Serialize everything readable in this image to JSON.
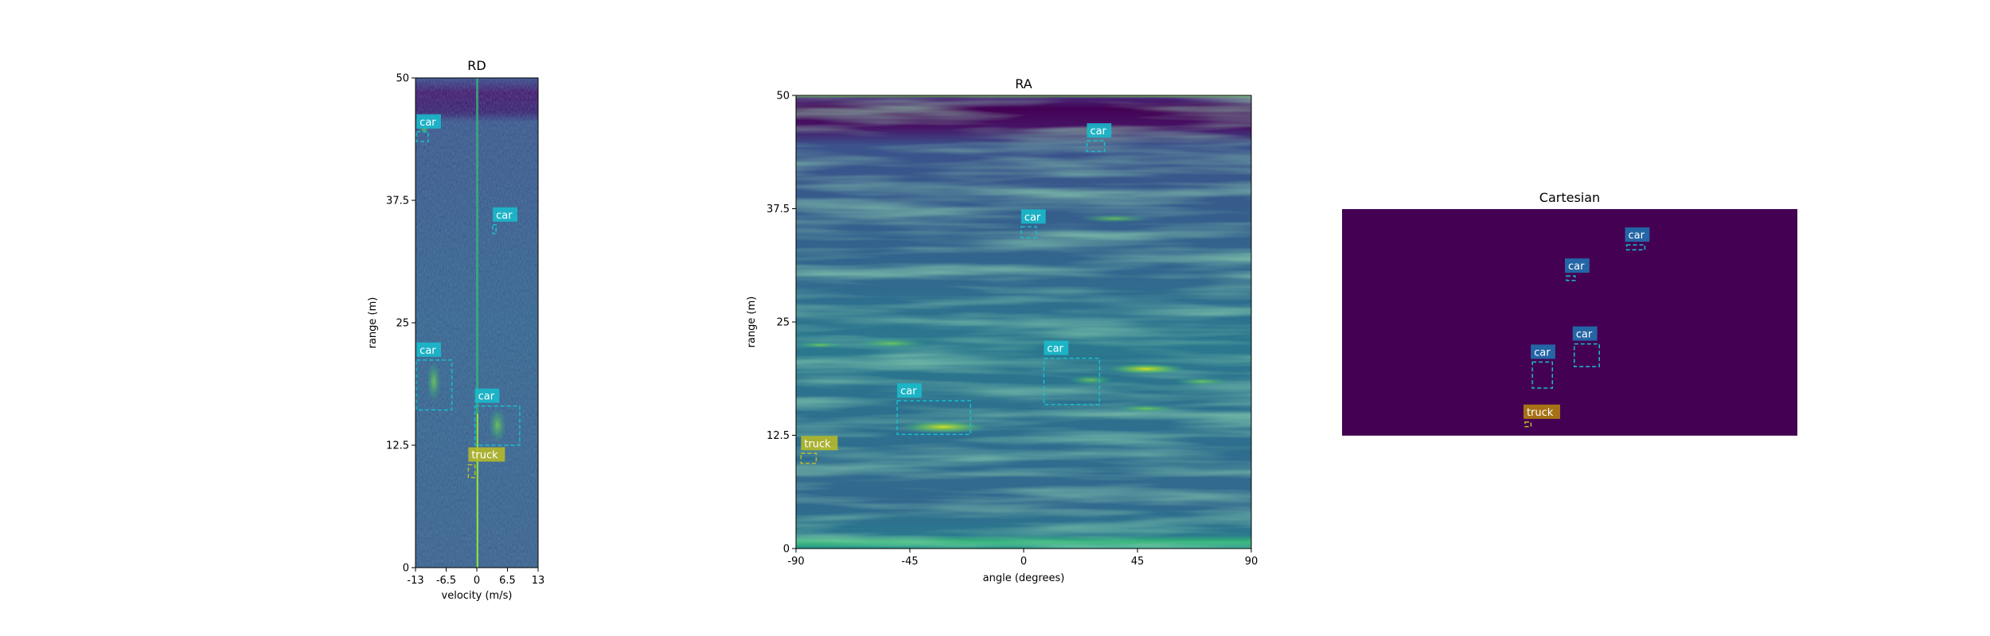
{
  "chart_data": [
    {
      "type": "heatmap",
      "title": "RD",
      "xlabel": "velocity (m/s)",
      "ylabel": "range (m)",
      "xlim": [
        -13,
        13
      ],
      "ylim": [
        0,
        50
      ],
      "xticks": [
        {
          "value": -13,
          "label": "-13"
        },
        {
          "value": -6.5,
          "label": "-6.5"
        },
        {
          "value": 0,
          "label": "0"
        },
        {
          "value": 6.5,
          "label": "6.5"
        },
        {
          "value": 13,
          "label": "13"
        }
      ],
      "yticks": [
        {
          "value": 0,
          "label": "0"
        },
        {
          "value": 12.5,
          "label": "12.5"
        },
        {
          "value": 25,
          "label": "25"
        },
        {
          "value": 37.5,
          "label": "37.5"
        },
        {
          "value": 50,
          "label": "50"
        }
      ],
      "boxes": [
        {
          "label": "car",
          "x0": -12.8,
          "x1": -10.3,
          "y0": 43.5,
          "y1": 44.5
        },
        {
          "label": "car",
          "x0": 3.4,
          "x1": 4.0,
          "y0": 34.1,
          "y1": 35.0
        },
        {
          "label": "car",
          "x0": -12.8,
          "x1": -5.3,
          "y0": 16.1,
          "y1": 21.2
        },
        {
          "label": "car",
          "x0": -0.4,
          "x1": 9.1,
          "y0": 12.5,
          "y1": 16.5
        },
        {
          "label": "truck",
          "x0": -1.8,
          "x1": -0.4,
          "y0": 9.2,
          "y1": 10.5
        }
      ]
    },
    {
      "type": "heatmap",
      "title": "RA",
      "xlabel": "angle (degrees)",
      "ylabel": "range (m)",
      "xlim": [
        -90,
        90
      ],
      "ylim": [
        0,
        50
      ],
      "xticks": [
        {
          "value": -90,
          "label": "-90"
        },
        {
          "value": -45,
          "label": "-45"
        },
        {
          "value": 0,
          "label": "0"
        },
        {
          "value": 45,
          "label": "45"
        },
        {
          "value": 90,
          "label": "90"
        }
      ],
      "yticks": [
        {
          "value": 0,
          "label": "0"
        },
        {
          "value": 12.5,
          "label": "12.5"
        },
        {
          "value": 25,
          "label": "25"
        },
        {
          "value": 37.5,
          "label": "37.5"
        },
        {
          "value": 50,
          "label": "50"
        }
      ],
      "boxes": [
        {
          "label": "car",
          "x0": 25,
          "x1": 32,
          "y0": 43.8,
          "y1": 45.0
        },
        {
          "label": "car",
          "x0": -1,
          "x1": 5,
          "y0": 34.3,
          "y1": 35.5
        },
        {
          "label": "car",
          "x0": 8,
          "x1": 30,
          "y0": 15.9,
          "y1": 21.0
        },
        {
          "label": "car",
          "x0": -50,
          "x1": -21,
          "y0": 12.6,
          "y1": 16.3
        },
        {
          "label": "truck",
          "x0": -88,
          "x1": -82,
          "y0": 9.4,
          "y1": 10.5
        }
      ]
    },
    {
      "type": "heatmap",
      "title": "Cartesian",
      "boxes": [
        {
          "label": "car",
          "fx0": 0.625,
          "fx1": 0.665,
          "fy0": 0.82,
          "fy1": 0.842
        },
        {
          "label": "car",
          "fx0": 0.493,
          "fx1": 0.512,
          "fy0": 0.685,
          "fy1": 0.705
        },
        {
          "label": "car",
          "fx0": 0.51,
          "fx1": 0.565,
          "fy0": 0.305,
          "fy1": 0.405
        },
        {
          "label": "car",
          "fx0": 0.418,
          "fx1": 0.462,
          "fy0": 0.21,
          "fy1": 0.325
        },
        {
          "label": "truck",
          "fx0": 0.402,
          "fx1": 0.415,
          "fy0": 0.04,
          "fy1": 0.06
        }
      ]
    }
  ],
  "colors": {
    "car": "#17becf",
    "car_cartesian": "#1f77b4",
    "truck": "#bcbd22",
    "truck_cartesian": "#b8860b",
    "label_text": "#ffffff",
    "viridis_dark": "#440154",
    "viridis_blue": "#31688e",
    "viridis_green": "#35b779",
    "viridis_yellow": "#fde725"
  }
}
